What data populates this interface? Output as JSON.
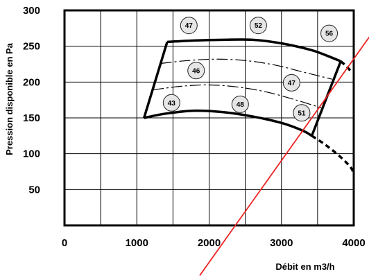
{
  "chart_data": {
    "type": "line",
    "xlabel": "Débit en m3/h",
    "ylabel": "Pression disponible en Pa",
    "xlim": [
      0,
      4000
    ],
    "ylim": [
      0,
      300
    ],
    "x_ticks": [
      "0",
      "1000",
      "2000",
      "3000",
      "4000"
    ],
    "x_tick_values": [
      0,
      1000,
      2000,
      3000,
      4000
    ],
    "y_ticks": [
      "300",
      "250",
      "200",
      "150",
      "100",
      "50"
    ],
    "y_tick_values": [
      300,
      250,
      200,
      150,
      100,
      50
    ],
    "x_grid_step": 500,
    "y_grid_step": 50,
    "grid": true,
    "series": [
      {
        "role": "max-curve",
        "style": "solid",
        "points": [
          [
            1420,
            256
          ],
          [
            1800,
            258
          ],
          [
            2200,
            259
          ],
          [
            2600,
            259
          ],
          [
            3000,
            254
          ],
          [
            3400,
            245
          ],
          [
            3600,
            238
          ],
          [
            3820,
            229
          ]
        ]
      },
      {
        "role": "max-curve-extension",
        "style": "dashed",
        "points": [
          [
            3820,
            229
          ],
          [
            3900,
            222
          ],
          [
            3960,
            215
          ]
        ]
      },
      {
        "role": "mid-curve",
        "style": "dash-dot",
        "points": [
          [
            1330,
            226
          ],
          [
            1700,
            230
          ],
          [
            2100,
            232
          ],
          [
            2500,
            230
          ],
          [
            2900,
            224
          ],
          [
            3300,
            214
          ],
          [
            3700,
            204
          ]
        ]
      },
      {
        "role": "low-mid-curve",
        "style": "dash-dot",
        "points": [
          [
            1220,
            189
          ],
          [
            1600,
            194
          ],
          [
            2000,
            196
          ],
          [
            2400,
            193
          ],
          [
            2800,
            186
          ],
          [
            3200,
            175
          ],
          [
            3550,
            164
          ]
        ]
      },
      {
        "role": "min-curve",
        "style": "solid",
        "points": [
          [
            1100,
            150
          ],
          [
            1400,
            156
          ],
          [
            1800,
            160
          ],
          [
            2200,
            158
          ],
          [
            2600,
            152
          ],
          [
            3000,
            143
          ],
          [
            3300,
            132
          ],
          [
            3420,
            125
          ]
        ]
      },
      {
        "role": "min-curve-extension",
        "style": "dashed",
        "points": [
          [
            3420,
            125
          ],
          [
            3600,
            113
          ],
          [
            3800,
            97
          ],
          [
            3950,
            82
          ],
          [
            4000,
            73
          ]
        ]
      },
      {
        "role": "envelope-left",
        "style": "solid",
        "points": [
          [
            1100,
            150
          ],
          [
            1420,
            256
          ]
        ]
      },
      {
        "role": "envelope-right",
        "style": "solid",
        "points": [
          [
            3420,
            125
          ],
          [
            3820,
            229
          ]
        ]
      },
      {
        "role": "system-line",
        "style": "solid",
        "color": "#ee2222",
        "points": [
          [
            1870,
            -70
          ],
          [
            4230,
            265
          ]
        ]
      }
    ],
    "annotations": [
      {
        "text": "47",
        "x": 1720,
        "y": 279
      },
      {
        "text": "52",
        "x": 2680,
        "y": 279
      },
      {
        "text": "56",
        "x": 3660,
        "y": 268
      },
      {
        "text": "46",
        "x": 1820,
        "y": 216
      },
      {
        "text": "47",
        "x": 3140,
        "y": 199
      },
      {
        "text": "43",
        "x": 1480,
        "y": 171
      },
      {
        "text": "48",
        "x": 2430,
        "y": 169
      },
      {
        "text": "51",
        "x": 3280,
        "y": 157
      }
    ]
  },
  "colors": {
    "frame": "#000000",
    "grid": "#000000",
    "curves": "#000000",
    "system_line": "#ee2222",
    "bubble_fill": "#e6e6e6",
    "bubble_stroke": "#222222"
  }
}
